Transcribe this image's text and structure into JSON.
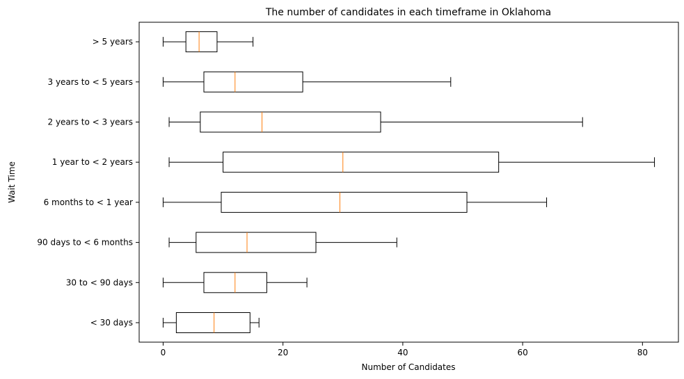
{
  "chart_data": {
    "type": "boxplot",
    "orientation": "horizontal",
    "title": "The number of candidates in each timeframe in Oklahoma",
    "xlabel": "Number of Candidates",
    "ylabel": "Wait Time",
    "xlim": [
      -4,
      86
    ],
    "xticks": [
      0,
      20,
      40,
      60,
      80
    ],
    "grid": false,
    "colors": {
      "box": "#000000",
      "median": "#ff7f0e",
      "whisker": "#000000"
    },
    "categories": [
      "< 30 days",
      "30 to < 90 days",
      "90 days to < 6 months",
      "6 months to < 1 year",
      "1 year to < 2 years",
      "2 years to < 3 years",
      "3 years to < 5 years",
      "> 5 years"
    ],
    "boxes": [
      {
        "category": "< 30 days",
        "min": 0,
        "q1": 2.2,
        "median": 8.5,
        "q3": 14.5,
        "max": 16
      },
      {
        "category": "30 to < 90 days",
        "min": 0,
        "q1": 6.8,
        "median": 12,
        "q3": 17.3,
        "max": 24
      },
      {
        "category": "90 days to < 6 months",
        "min": 1,
        "q1": 5.5,
        "median": 14,
        "q3": 25.5,
        "max": 39
      },
      {
        "category": "6 months to < 1 year",
        "min": 0,
        "q1": 9.7,
        "median": 29.5,
        "q3": 50.7,
        "max": 64
      },
      {
        "category": "1 year to < 2 years",
        "min": 1,
        "q1": 10,
        "median": 30,
        "q3": 56,
        "max": 82
      },
      {
        "category": "2 years to < 3 years",
        "min": 1,
        "q1": 6.2,
        "median": 16.5,
        "q3": 36.3,
        "max": 70
      },
      {
        "category": "3 years to < 5 years",
        "min": 0,
        "q1": 6.8,
        "median": 12,
        "q3": 23.3,
        "max": 48
      },
      {
        "category": "> 5 years",
        "min": 0,
        "q1": 3.8,
        "median": 6,
        "q3": 9,
        "max": 15
      }
    ]
  }
}
